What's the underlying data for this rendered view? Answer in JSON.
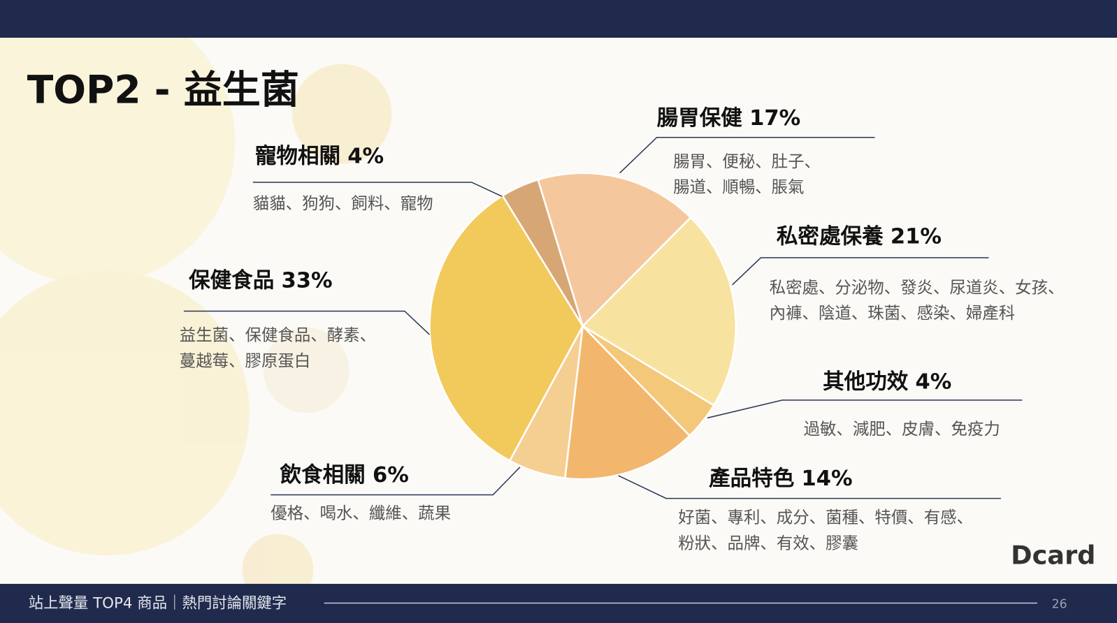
{
  "header": {
    "title": "TOP2 - 益生菌"
  },
  "chart_data": {
    "type": "pie",
    "categories": [
      "腸胃保健",
      "私密處保養",
      "其他功效",
      "產品特色",
      "飲食相關",
      "保健食品",
      "寵物相關"
    ],
    "values": [
      17,
      21,
      4,
      14,
      6,
      33,
      4
    ],
    "value_labels": [
      "17%",
      "21%",
      "4%",
      "14%",
      "6%",
      "33%",
      "4%"
    ],
    "colors": [
      "#f5c79d",
      "#f7e2a0",
      "#f3c878",
      "#f2b66c",
      "#f5cf92",
      "#f2c95b",
      "#d6a675"
    ],
    "keywords": [
      [
        "腸胃、便秘、肚子、",
        "腸道、順暢、脹氣"
      ],
      [
        "私密處、分泌物、發炎、尿道炎、女孩、",
        "內褲、陰道、珠菌、感染、婦產科"
      ],
      [
        "過敏、減肥、皮膚、免疫力"
      ],
      [
        "好菌、專利、成分、菌種、特價、有感、",
        "粉狀、品牌、有效、膠囊"
      ],
      [
        "優格、喝水、纖維、蔬果"
      ],
      [
        "益生菌、保健食品、酵素、",
        "蔓越莓、膠原蛋白"
      ],
      [
        "貓貓、狗狗、飼料、寵物"
      ]
    ]
  },
  "footer": {
    "text": "站上聲量 TOP4 商品｜熱門討論關鍵字",
    "page": "26",
    "logo": "Dcard"
  }
}
